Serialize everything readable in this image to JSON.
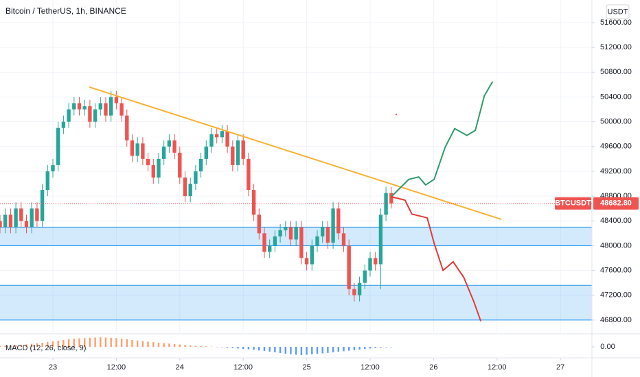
{
  "header": {
    "title": "Bitcoin / TetherUS, 1h, BINANCE",
    "currency": "USDT"
  },
  "chart_data": {
    "type": "candlestick",
    "x": [
      -10,
      -9,
      -8,
      -7,
      -6,
      -5,
      -4,
      -3,
      -2,
      -1,
      0,
      1,
      2,
      3,
      4,
      5,
      6,
      7,
      8,
      9,
      10,
      11,
      12,
      13,
      14,
      15,
      16,
      17,
      18,
      19,
      20,
      21,
      22,
      23,
      24,
      25,
      26,
      27,
      28,
      29,
      30,
      31,
      32,
      33,
      34,
      35,
      36,
      37,
      38,
      39,
      40,
      41,
      42,
      43,
      44,
      45,
      46,
      47,
      48,
      49,
      50,
      51,
      52,
      53,
      54,
      55,
      56,
      57,
      58,
      59,
      60,
      61,
      62,
      63,
      64
    ],
    "open": [
      48400,
      48300,
      48500,
      48300,
      48600,
      48400,
      48300,
      48600,
      48400,
      48900,
      49200,
      49300,
      49900,
      50000,
      50200,
      50300,
      50200,
      50250,
      50000,
      50200,
      50300,
      50100,
      50400,
      50300,
      50100,
      49700,
      49450,
      49650,
      49400,
      49300,
      49100,
      49400,
      49600,
      49700,
      49500,
      49100,
      48800,
      49000,
      49200,
      49400,
      49600,
      49800,
      49750,
      49850,
      49600,
      49300,
      49700,
      49400,
      48900,
      48500,
      48200,
      47900,
      48000,
      48150,
      48250,
      48300,
      48100,
      48300,
      47800,
      47700,
      48000,
      48150,
      48300,
      48050,
      48600,
      48200,
      48000,
      47300,
      47200,
      47400,
      47600,
      47800,
      47700,
      48500,
      48850
    ],
    "high": [
      48500,
      48600,
      48600,
      48700,
      48700,
      48500,
      48700,
      48700,
      49000,
      49300,
      49400,
      50000,
      50100,
      50300,
      50400,
      50400,
      50350,
      50350,
      50300,
      50400,
      50400,
      50500,
      50500,
      50400,
      50200,
      49800,
      49750,
      49750,
      49500,
      49400,
      49500,
      49700,
      49800,
      49800,
      49600,
      49200,
      49100,
      49300,
      49500,
      49700,
      49900,
      49900,
      49950,
      49950,
      49700,
      49800,
      49800,
      49500,
      49000,
      48600,
      48300,
      48100,
      48250,
      48350,
      48400,
      48400,
      48400,
      48400,
      47900,
      48100,
      48250,
      48400,
      48400,
      48700,
      48700,
      48300,
      48100,
      47400,
      47500,
      47700,
      47900,
      47900,
      48600,
      48950,
      48950
    ],
    "low": [
      48200,
      48200,
      48200,
      48200,
      48300,
      48200,
      48200,
      48300,
      48300,
      48800,
      49100,
      49200,
      49800,
      49900,
      50100,
      50100,
      50100,
      49900,
      49900,
      50100,
      50000,
      50000,
      50200,
      50000,
      49600,
      49350,
      49350,
      49300,
      49200,
      49000,
      49000,
      49300,
      49500,
      49400,
      49000,
      48700,
      48700,
      48900,
      49100,
      49300,
      49500,
      49650,
      49650,
      49500,
      49200,
      49200,
      49300,
      48800,
      48400,
      48100,
      47800,
      47800,
      47900,
      48050,
      48150,
      48000,
      48000,
      47700,
      47600,
      47600,
      47900,
      48050,
      47950,
      47950,
      48100,
      47900,
      47200,
      47100,
      47100,
      47300,
      47500,
      47600,
      47300,
      48400,
      48600
    ],
    "close": [
      48300,
      48500,
      48300,
      48600,
      48400,
      48300,
      48600,
      48400,
      48900,
      49200,
      49300,
      49900,
      50000,
      50200,
      50300,
      50200,
      50250,
      50000,
      50200,
      50300,
      50100,
      50400,
      50300,
      50100,
      49700,
      49450,
      49650,
      49400,
      49300,
      49100,
      49400,
      49600,
      49700,
      49500,
      49100,
      48800,
      49000,
      49200,
      49400,
      49600,
      49800,
      49750,
      49850,
      49600,
      49300,
      49700,
      49400,
      48900,
      48500,
      48200,
      47900,
      48000,
      48150,
      48250,
      48300,
      48100,
      48300,
      47800,
      47700,
      48000,
      48150,
      48300,
      48050,
      48600,
      48200,
      48000,
      47300,
      47200,
      47400,
      47600,
      47800,
      47700,
      48500,
      48850,
      48682.8
    ],
    "up_color": "#26a69a",
    "down_color": "#ef5350",
    "xlim": [
      -10,
      101.95
    ],
    "ylim": [
      46600,
      51965
    ],
    "xticks": [
      {
        "value": 0,
        "label": "23"
      },
      {
        "value": 12,
        "label": "12:00"
      },
      {
        "value": 24,
        "label": "24"
      },
      {
        "value": 36,
        "label": "12:00"
      },
      {
        "value": 48,
        "label": "25"
      },
      {
        "value": 60,
        "label": "12:00"
      },
      {
        "value": 72,
        "label": "26"
      },
      {
        "value": 84,
        "label": "12:00"
      },
      {
        "value": 96,
        "label": "27"
      }
    ],
    "yticks": [
      {
        "value": 51600,
        "label": "51600.00"
      },
      {
        "value": 51200,
        "label": "51200.00"
      },
      {
        "value": 50800,
        "label": "50800.00"
      },
      {
        "value": 50400,
        "label": "50400.00"
      },
      {
        "value": 50000,
        "label": "50000.00"
      },
      {
        "value": 49600,
        "label": "49600.00"
      },
      {
        "value": 49200,
        "label": "49200.00"
      },
      {
        "value": 48800,
        "label": "48800.00"
      },
      {
        "value": 48400,
        "label": "48400.00"
      },
      {
        "value": 48000,
        "label": "48000.00"
      },
      {
        "value": 47600,
        "label": "47600.00"
      },
      {
        "value": 47200,
        "label": "47200.00"
      },
      {
        "value": 46800,
        "label": "46800.00"
      }
    ],
    "last_price": {
      "symbol": "BTCUSDT",
      "label": "48682.80",
      "color": "#ef5350"
    },
    "zones": [
      {
        "top": 48300,
        "bottom": 48000
      },
      {
        "top": 47360,
        "bottom": 46800
      }
    ],
    "zone_color": "#2196f3",
    "trendline": {
      "x": [
        6.9,
        84.8
      ],
      "y": [
        50560,
        48426
      ],
      "color": "#f9b233"
    },
    "projections": [
      {
        "color": "#2e9a6a",
        "x": [
          64,
          67.3,
          69.2,
          70.5,
          72.1,
          74.2,
          76,
          78.3,
          79.9,
          81.6,
          83.1
        ],
        "y": [
          48790,
          49070,
          49110,
          48980,
          49070,
          49590,
          49890,
          49780,
          49860,
          50420,
          50640
        ]
      },
      {
        "color": "#e53935",
        "x": [
          64,
          66.6,
          67.9,
          70.8,
          72.1,
          73.8,
          75.7,
          77.7,
          79.6,
          80.9
        ],
        "y": [
          48790,
          48735,
          48510,
          48450,
          48040,
          47600,
          47740,
          47490,
          47100,
          46790
        ]
      }
    ],
    "macd": {
      "title": "MACD (12, 26, close, 9)",
      "ylim": [
        -80,
        90
      ],
      "yticks": [
        {
          "value": 0,
          "label": "0.00"
        }
      ],
      "pos_color": "#ff9e6b",
      "neg_color": "#5b9cf6",
      "values": [
        5,
        8,
        10,
        12,
        15,
        18,
        22,
        26,
        30,
        35,
        40,
        45,
        50,
        55,
        58,
        62,
        64,
        66,
        68,
        70,
        68,
        66,
        64,
        60,
        55,
        50,
        46,
        42,
        38,
        34,
        30,
        27,
        24,
        20,
        17,
        14,
        11,
        8,
        6,
        4,
        2,
        0,
        -2,
        -5,
        -8,
        -12,
        -15,
        -18,
        -22,
        -26,
        -30,
        -35,
        -40,
        -45,
        -50,
        -54,
        -57,
        -60,
        -58,
        -55,
        -52,
        -48,
        -44,
        -40,
        -36,
        -32,
        -28,
        -24,
        -20,
        -16,
        -12,
        -8,
        -5,
        -3,
        -1
      ]
    }
  }
}
